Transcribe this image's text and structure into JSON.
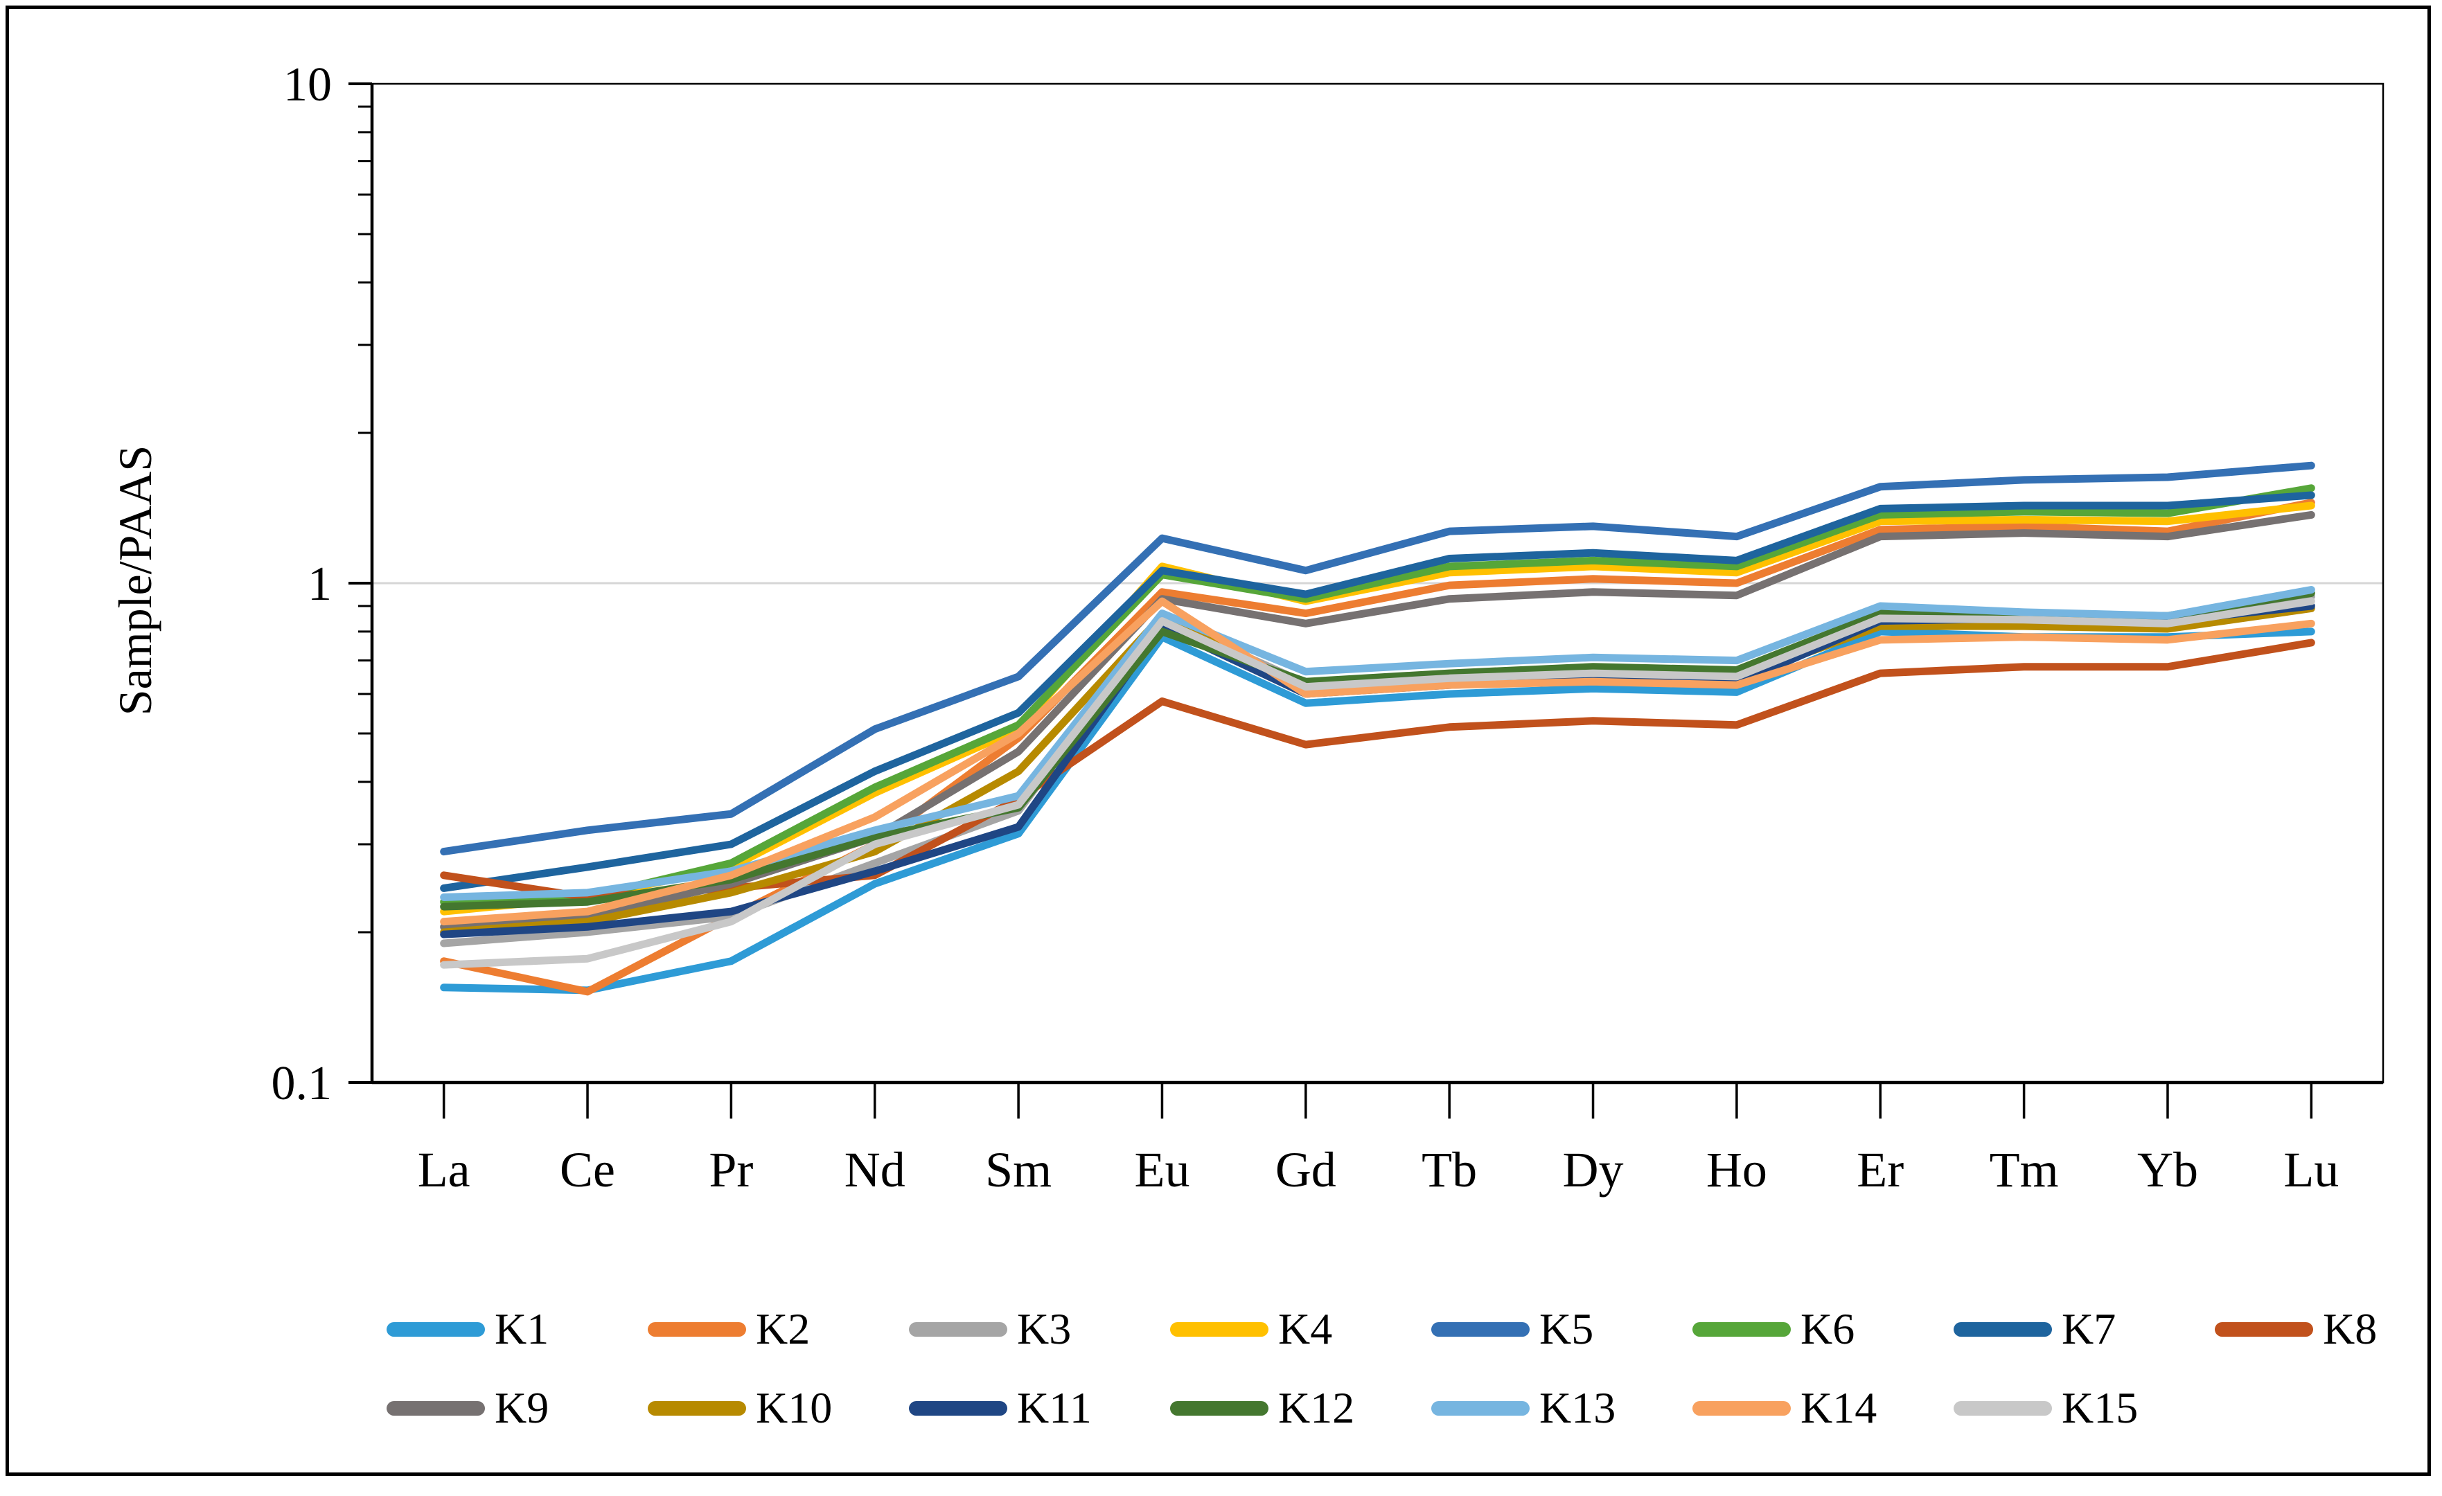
{
  "figure": {
    "background_color": "#FFFFFF",
    "frame_color": "#000000"
  },
  "chart_data": {
    "type": "line",
    "title": "",
    "xlabel": "",
    "ylabel": "Sample/PAAS",
    "y_scale": "log",
    "ylim": [
      0.1,
      10
    ],
    "y_major_ticks": [
      0.1,
      1,
      10
    ],
    "y_tick_labels": [
      "0.1",
      "1",
      "10"
    ],
    "gridline_values": [
      1
    ],
    "gridline_color": "#D6D6D6",
    "axis_color": "#000000",
    "legend_position": "bottom",
    "legend_rows": [
      8,
      7
    ],
    "categories": [
      "La",
      "Ce",
      "Pr",
      "Nd",
      "Sm",
      "Eu",
      "Gd",
      "Tb",
      "Dy",
      "Ho",
      "Er",
      "Tm",
      "Yb",
      "Lu"
    ],
    "series": [
      {
        "name": "K1",
        "color": "#2E9BD6",
        "values": [
          0.155,
          0.153,
          0.175,
          0.25,
          0.315,
          0.78,
          0.575,
          0.6,
          0.615,
          0.605,
          0.8,
          0.78,
          0.78,
          0.8
        ]
      },
      {
        "name": "K2",
        "color": "#ED7D31",
        "values": [
          0.175,
          0.152,
          0.215,
          0.3,
          0.49,
          0.96,
          0.87,
          0.99,
          1.02,
          1.0,
          1.28,
          1.3,
          1.27,
          1.45
        ]
      },
      {
        "name": "K3",
        "color": "#A5A5A5",
        "values": [
          0.19,
          0.2,
          0.215,
          0.275,
          0.35,
          0.85,
          0.63,
          0.655,
          0.67,
          0.66,
          0.86,
          0.855,
          0.84,
          0.94
        ]
      },
      {
        "name": "K4",
        "color": "#FFC000",
        "values": [
          0.22,
          0.235,
          0.27,
          0.38,
          0.51,
          1.08,
          0.92,
          1.05,
          1.08,
          1.05,
          1.33,
          1.34,
          1.33,
          1.43
        ]
      },
      {
        "name": "K5",
        "color": "#3470B4",
        "values": [
          0.29,
          0.32,
          0.345,
          0.51,
          0.65,
          1.23,
          1.06,
          1.27,
          1.3,
          1.24,
          1.56,
          1.61,
          1.63,
          1.72
        ]
      },
      {
        "name": "K6",
        "color": "#56A639",
        "values": [
          0.23,
          0.235,
          0.275,
          0.39,
          0.52,
          1.04,
          0.93,
          1.08,
          1.11,
          1.08,
          1.37,
          1.39,
          1.38,
          1.55
        ]
      },
      {
        "name": "K7",
        "color": "#1E649E",
        "values": [
          0.245,
          0.27,
          0.3,
          0.42,
          0.55,
          1.06,
          0.95,
          1.12,
          1.15,
          1.11,
          1.41,
          1.43,
          1.43,
          1.5
        ]
      },
      {
        "name": "K8",
        "color": "#C1511C",
        "values": [
          0.26,
          0.235,
          0.245,
          0.26,
          0.37,
          0.58,
          0.475,
          0.515,
          0.53,
          0.52,
          0.66,
          0.68,
          0.68,
          0.76
        ]
      },
      {
        "name": "K9",
        "color": "#767171",
        "values": [
          0.205,
          0.215,
          0.25,
          0.31,
          0.46,
          0.93,
          0.83,
          0.93,
          0.96,
          0.945,
          1.24,
          1.26,
          1.24,
          1.37
        ]
      },
      {
        "name": "K10",
        "color": "#B78A00",
        "values": [
          0.2,
          0.21,
          0.24,
          0.29,
          0.42,
          0.86,
          0.615,
          0.64,
          0.655,
          0.645,
          0.82,
          0.82,
          0.81,
          0.89
        ]
      },
      {
        "name": "K11",
        "color": "#1F4684",
        "values": [
          0.198,
          0.205,
          0.22,
          0.265,
          0.325,
          0.82,
          0.6,
          0.625,
          0.64,
          0.63,
          0.84,
          0.85,
          0.84,
          0.9
        ]
      },
      {
        "name": "K12",
        "color": "#44772F",
        "values": [
          0.225,
          0.23,
          0.255,
          0.31,
          0.355,
          0.8,
          0.635,
          0.66,
          0.68,
          0.67,
          0.87,
          0.87,
          0.86,
          0.955
        ]
      },
      {
        "name": "K13",
        "color": "#76B5E0",
        "values": [
          0.235,
          0.24,
          0.265,
          0.32,
          0.375,
          0.87,
          0.665,
          0.69,
          0.71,
          0.7,
          0.9,
          0.875,
          0.86,
          0.97
        ]
      },
      {
        "name": "K14",
        "color": "#F8A15F",
        "values": [
          0.21,
          0.22,
          0.26,
          0.34,
          0.5,
          0.92,
          0.6,
          0.625,
          0.635,
          0.625,
          0.77,
          0.78,
          0.77,
          0.83
        ]
      },
      {
        "name": "K15",
        "color": "#C8C8C8",
        "values": [
          0.172,
          0.177,
          0.21,
          0.3,
          0.36,
          0.84,
          0.62,
          0.645,
          0.66,
          0.65,
          0.85,
          0.845,
          0.83,
          0.92
        ]
      }
    ]
  }
}
